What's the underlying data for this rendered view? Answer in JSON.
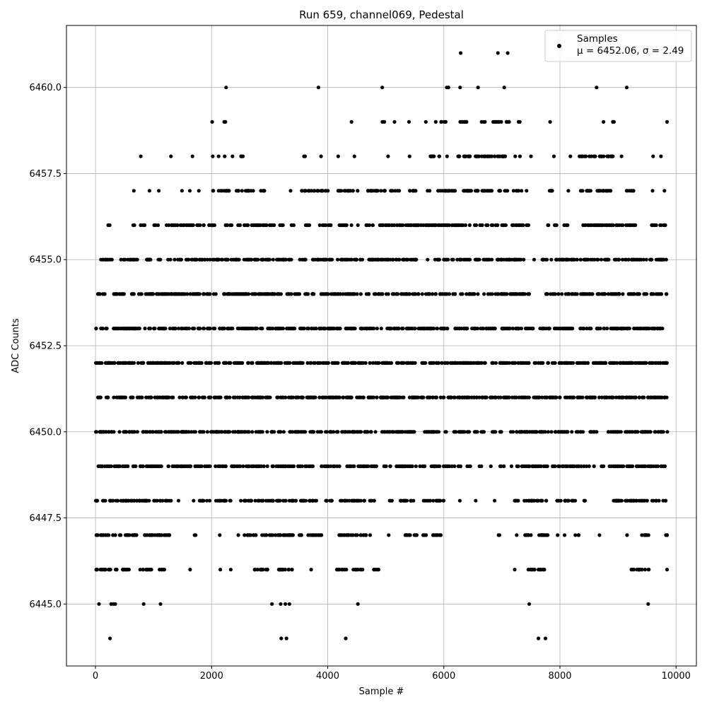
{
  "chart_data": {
    "type": "scatter",
    "title": "Run 659, channel069, Pedestal",
    "xlabel": "Sample #",
    "ylabel": "ADC Counts",
    "xlim": [
      -500,
      10350
    ],
    "ylim": [
      6443.2,
      6461.8
    ],
    "xticks": [
      0,
      2000,
      4000,
      6000,
      8000,
      10000
    ],
    "xtick_labels": [
      "0",
      "2000",
      "4000",
      "6000",
      "8000",
      "10000"
    ],
    "yticks": [
      6445.0,
      6447.5,
      6450.0,
      6452.5,
      6455.0,
      6457.5,
      6460.0
    ],
    "ytick_labels": [
      "6445.0",
      "6447.5",
      "6450.0",
      "6452.5",
      "6455.0",
      "6457.5",
      "6460.0"
    ],
    "grid": true,
    "legend_position": "top-right",
    "marker_color": "#000000",
    "series": [
      {
        "name": "Samples",
        "label_line2": "μ = 6452.06, σ = 2.49",
        "n_samples": 9850,
        "x_range": [
          0,
          9850
        ],
        "y_levels": [
          6444,
          6445,
          6446,
          6447,
          6448,
          6449,
          6450,
          6451,
          6452,
          6453,
          6454,
          6455,
          6456,
          6457,
          6458,
          6459,
          6460,
          6461
        ],
        "points": [
          [
            250,
            6444
          ],
          [
            3200,
            6444
          ],
          [
            3290,
            6444
          ],
          [
            4310,
            6444
          ],
          [
            7630,
            6444
          ],
          [
            7750,
            6444
          ],
          [
            60,
            6445
          ],
          [
            270,
            6445
          ],
          [
            310,
            6445
          ],
          [
            340,
            6445
          ],
          [
            830,
            6445
          ],
          [
            1120,
            6445
          ],
          [
            3040,
            6445
          ],
          [
            3190,
            6445
          ],
          [
            3270,
            6445
          ],
          [
            3340,
            6445
          ],
          [
            4520,
            6445
          ],
          [
            7470,
            6445
          ],
          [
            9520,
            6445
          ],
          [
            2250,
            6460
          ],
          [
            3840,
            6460
          ],
          [
            4940,
            6460
          ],
          [
            6050,
            6460
          ],
          [
            6080,
            6460
          ],
          [
            6280,
            6460
          ],
          [
            6590,
            6460
          ],
          [
            7040,
            6460
          ],
          [
            8630,
            6460
          ],
          [
            9150,
            6460
          ],
          [
            6290,
            6461
          ],
          [
            6930,
            6461
          ],
          [
            7100,
            6461
          ]
        ],
        "level_segments": {
          "6446": [
            [
              0,
              600
            ],
            [
              760,
              1000
            ],
            [
              1100,
              1200
            ],
            [
              1620,
              1640
            ],
            [
              2140,
              2160
            ],
            [
              2320,
              2340
            ],
            [
              2700,
              3000
            ],
            [
              3100,
              3420
            ],
            [
              3710,
              3720
            ],
            [
              4150,
              4330
            ],
            [
              4400,
              4600
            ],
            [
              4780,
              4880
            ],
            [
              7210,
              7230
            ],
            [
              7450,
              7750
            ],
            [
              9230,
              9540
            ],
            [
              9840,
              9850
            ]
          ],
          "6447": [
            [
              0,
              1280
            ],
            [
              1700,
              1740
            ],
            [
              2130,
              2150
            ],
            [
              2450,
              2470
            ],
            [
              2550,
              2800
            ],
            [
              2850,
              3550
            ],
            [
              3650,
              3900
            ],
            [
              4170,
              4680
            ],
            [
              4720,
              4740
            ],
            [
              5040,
              5060
            ],
            [
              5330,
              5700
            ],
            [
              5780,
              5980
            ],
            [
              6920,
              6960
            ],
            [
              7250,
              7260
            ],
            [
              7340,
              7790
            ],
            [
              7950,
              7970
            ],
            [
              8070,
              8090
            ],
            [
              8260,
              8330
            ],
            [
              8670,
              8690
            ],
            [
              9140,
              9170
            ],
            [
              9410,
              9560
            ],
            [
              9780,
              9850
            ]
          ],
          "6448": [
            [
              0,
              1330
            ],
            [
              1420,
              1440
            ],
            [
              1680,
              1700
            ],
            [
              1790,
              1980
            ],
            [
              2070,
              2370
            ],
            [
              2490,
              3810
            ],
            [
              3950,
              4080
            ],
            [
              4180,
              4800
            ],
            [
              5060,
              5130
            ],
            [
              5240,
              5540
            ],
            [
              5630,
              6000
            ],
            [
              6260,
              6290
            ],
            [
              6540,
              6560
            ],
            [
              6860,
              6890
            ],
            [
              7200,
              7300
            ],
            [
              7380,
              7770
            ],
            [
              7950,
              8280
            ],
            [
              8390,
              8460
            ],
            [
              8910,
              9850
            ]
          ],
          "6449": [
            [
              0,
              2300
            ],
            [
              2330,
              3800
            ],
            [
              3880,
              4850
            ],
            [
              4950,
              5700
            ],
            [
              5780,
              6300
            ],
            [
              6400,
              6460
            ],
            [
              6610,
              6650
            ],
            [
              6800,
              6820
            ],
            [
              6960,
              7050
            ],
            [
              7150,
              7180
            ],
            [
              7250,
              8600
            ],
            [
              8700,
              8760
            ],
            [
              8850,
              9850
            ]
          ],
          "6450": [
            [
              0,
              6080
            ],
            [
              6140,
              6700
            ],
            [
              6830,
              7000
            ],
            [
              7120,
              8640
            ],
            [
              8790,
              9850
            ]
          ],
          "6451": [
            [
              0,
              9850
            ]
          ],
          "6452": [
            [
              0,
              9850
            ]
          ],
          "6453": [
            [
              0,
              40
            ],
            [
              80,
              200
            ],
            [
              280,
              7540
            ],
            [
              7640,
              9850
            ]
          ],
          "6454": [
            [
              40,
              500
            ],
            [
              620,
              7480
            ],
            [
              7750,
              9850
            ]
          ],
          "6455": [
            [
              60,
              300
            ],
            [
              400,
              960
            ],
            [
              1060,
              1130
            ],
            [
              1240,
              3400
            ],
            [
              3480,
              3620
            ],
            [
              3680,
              4420
            ],
            [
              4440,
              4610
            ],
            [
              4690,
              7400
            ],
            [
              7550,
              7560
            ],
            [
              7680,
              9850
            ]
          ],
          "6456": [
            [
              210,
              250
            ],
            [
              650,
              710
            ],
            [
              770,
              860
            ],
            [
              1000,
              1080
            ],
            [
              1190,
              1690
            ],
            [
              1730,
              2060
            ],
            [
              2220,
              3080
            ],
            [
              3150,
              3230
            ],
            [
              3370,
              3440
            ],
            [
              3570,
              3710
            ],
            [
              3830,
              4060
            ],
            [
              4190,
              4430
            ],
            [
              4510,
              4530
            ],
            [
              4650,
              4780
            ],
            [
              4880,
              7480
            ],
            [
              7790,
              7960
            ],
            [
              8040,
              8150
            ],
            [
              8340,
              9330
            ],
            [
              9560,
              9850
            ]
          ],
          "6457": [
            [
              650,
              670
            ],
            [
              920,
              940
            ],
            [
              1080,
              1100
            ],
            [
              1480,
              1500
            ],
            [
              1620,
              1630
            ],
            [
              1770,
              1790
            ],
            [
              2000,
              2040
            ],
            [
              2100,
              2340
            ],
            [
              2410,
              2720
            ],
            [
              2810,
              2910
            ],
            [
              3350,
              3370
            ],
            [
              3540,
              4050
            ],
            [
              4170,
              4520
            ],
            [
              4650,
              5250
            ],
            [
              5350,
              5530
            ],
            [
              5710,
              5760
            ],
            [
              5900,
              6300
            ],
            [
              6320,
              7350
            ],
            [
              7410,
              7440
            ],
            [
              7810,
              7940
            ],
            [
              8140,
              8150
            ],
            [
              8310,
              8540
            ],
            [
              8640,
              8990
            ],
            [
              9140,
              9290
            ],
            [
              9580,
              9610
            ],
            [
              9790,
              9810
            ]
          ],
          "6458": [
            [
              770,
              790
            ],
            [
              1290,
              1310
            ],
            [
              1660,
              1680
            ],
            [
              2010,
              2030
            ],
            [
              2110,
              2130
            ],
            [
              2210,
              2240
            ],
            [
              2350,
              2370
            ],
            [
              2480,
              2550
            ],
            [
              3590,
              3640
            ],
            [
              3870,
              3900
            ],
            [
              4170,
              4190
            ],
            [
              4450,
              4470
            ],
            [
              5030,
              5050
            ],
            [
              5400,
              5420
            ],
            [
              5680,
              5840
            ],
            [
              5910,
              5960
            ],
            [
              6040,
              6070
            ],
            [
              6240,
              7110
            ],
            [
              7220,
              7240
            ],
            [
              7300,
              7320
            ],
            [
              7490,
              7510
            ],
            [
              7880,
              7910
            ],
            [
              8170,
              8190
            ],
            [
              8330,
              8930
            ],
            [
              9050,
              9070
            ],
            [
              9590,
              9620
            ],
            [
              9730,
              9750
            ]
          ],
          "6459": [
            [
              2000,
              2020
            ],
            [
              2210,
              2250
            ],
            [
              4400,
              4420
            ],
            [
              4940,
              4990
            ],
            [
              5140,
              5160
            ],
            [
              5390,
              5410
            ],
            [
              5680,
              5700
            ],
            [
              5850,
              5870
            ],
            [
              5950,
              6070
            ],
            [
              6270,
              6400
            ],
            [
              6650,
              6720
            ],
            [
              6810,
              6990
            ],
            [
              7060,
              7140
            ],
            [
              7280,
              7320
            ],
            [
              7820,
              7840
            ],
            [
              8740,
              8760
            ],
            [
              8910,
              8950
            ],
            [
              9840,
              9850
            ]
          ]
        }
      }
    ]
  }
}
